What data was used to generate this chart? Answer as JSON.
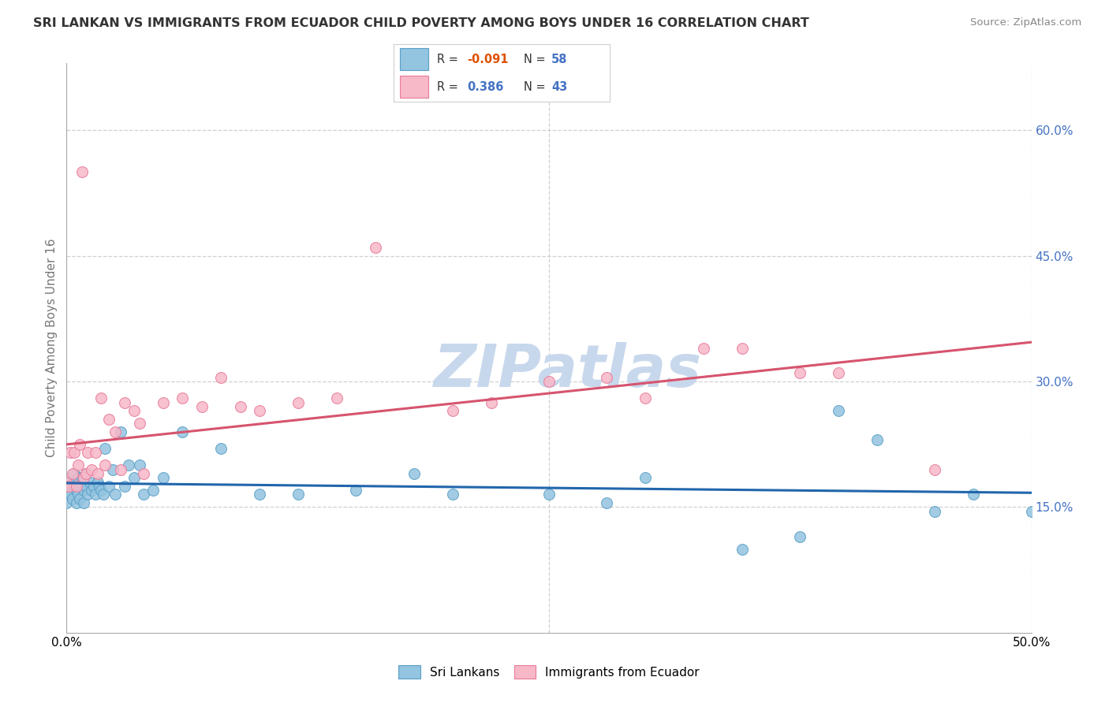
{
  "title": "SRI LANKAN VS IMMIGRANTS FROM ECUADOR CHILD POVERTY AMONG BOYS UNDER 16 CORRELATION CHART",
  "source": "Source: ZipAtlas.com",
  "ylabel": "Child Poverty Among Boys Under 16",
  "xlim": [
    0.0,
    0.5
  ],
  "ylim": [
    0.0,
    0.68
  ],
  "yticks": [
    0.15,
    0.3,
    0.45,
    0.6
  ],
  "ytick_labels": [
    "15.0%",
    "30.0%",
    "45.0%",
    "60.0%"
  ],
  "xtick_labels": [
    "0.0%",
    "",
    "",
    "",
    "",
    "",
    "",
    "",
    "",
    "",
    "50.0%"
  ],
  "blue_color": "#93c4e0",
  "blue_edge_color": "#5a9fc7",
  "pink_color": "#f7b8c8",
  "pink_edge_color": "#e87a9a",
  "blue_line_color": "#2166ac",
  "pink_line_color": "#d6546e",
  "dashed_line_color": "#d8a8b8",
  "watermark": "ZIPatlas",
  "watermark_color": "#c8d8ec",
  "grid_color": "#d0d0d0",
  "tick_label_color": "#4472c4",
  "legend_border_color": "#d0d0d0",
  "sri_x": [
    0.0,
    0.0,
    0.0,
    0.001,
    0.002,
    0.003,
    0.003,
    0.004,
    0.004,
    0.005,
    0.005,
    0.006,
    0.006,
    0.007,
    0.007,
    0.008,
    0.009,
    0.009,
    0.01,
    0.01,
    0.011,
    0.012,
    0.013,
    0.014,
    0.015,
    0.016,
    0.017,
    0.018,
    0.019,
    0.02,
    0.022,
    0.024,
    0.025,
    0.028,
    0.03,
    0.032,
    0.035,
    0.038,
    0.04,
    0.045,
    0.05,
    0.06,
    0.08,
    0.1,
    0.12,
    0.15,
    0.18,
    0.2,
    0.25,
    0.28,
    0.3,
    0.35,
    0.38,
    0.4,
    0.42,
    0.45,
    0.47,
    0.5
  ],
  "sri_y": [
    0.18,
    0.17,
    0.155,
    0.175,
    0.165,
    0.18,
    0.16,
    0.175,
    0.19,
    0.17,
    0.155,
    0.185,
    0.165,
    0.175,
    0.16,
    0.185,
    0.17,
    0.155,
    0.19,
    0.175,
    0.165,
    0.18,
    0.17,
    0.175,
    0.165,
    0.18,
    0.175,
    0.17,
    0.165,
    0.22,
    0.175,
    0.195,
    0.165,
    0.24,
    0.175,
    0.2,
    0.185,
    0.2,
    0.165,
    0.17,
    0.185,
    0.24,
    0.22,
    0.165,
    0.165,
    0.17,
    0.19,
    0.165,
    0.165,
    0.155,
    0.185,
    0.1,
    0.115,
    0.265,
    0.23,
    0.145,
    0.165,
    0.145
  ],
  "ecu_x": [
    0.0,
    0.001,
    0.002,
    0.003,
    0.004,
    0.005,
    0.006,
    0.007,
    0.008,
    0.009,
    0.01,
    0.011,
    0.013,
    0.015,
    0.016,
    0.018,
    0.02,
    0.022,
    0.025,
    0.028,
    0.03,
    0.035,
    0.038,
    0.04,
    0.05,
    0.06,
    0.07,
    0.08,
    0.09,
    0.1,
    0.12,
    0.14,
    0.16,
    0.2,
    0.22,
    0.25,
    0.28,
    0.3,
    0.33,
    0.35,
    0.38,
    0.4,
    0.45
  ],
  "ecu_y": [
    0.18,
    0.175,
    0.215,
    0.19,
    0.215,
    0.175,
    0.2,
    0.225,
    0.55,
    0.185,
    0.19,
    0.215,
    0.195,
    0.215,
    0.19,
    0.28,
    0.2,
    0.255,
    0.24,
    0.195,
    0.275,
    0.265,
    0.25,
    0.19,
    0.275,
    0.28,
    0.27,
    0.305,
    0.27,
    0.265,
    0.275,
    0.28,
    0.46,
    0.265,
    0.275,
    0.3,
    0.305,
    0.28,
    0.34,
    0.34,
    0.31,
    0.31,
    0.195
  ]
}
